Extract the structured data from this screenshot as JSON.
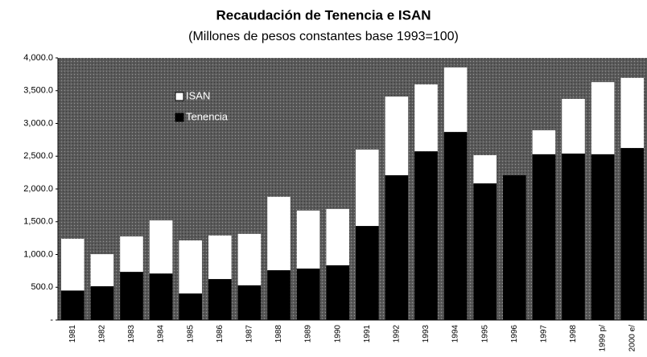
{
  "chart_data": {
    "type": "stacked_bar",
    "title": "Recaudación de Tenencia e ISAN",
    "subtitle": "(Millones de pesos constantes base 1993=100)",
    "categories": [
      "1981",
      "1982",
      "1983",
      "1984",
      "1985",
      "1986",
      "1987",
      "1988",
      "1989",
      "1990",
      "1991",
      "1992",
      "1993",
      "1994",
      "1995",
      "1996",
      "1997",
      "1998",
      "1999 p/",
      "2000 e/"
    ],
    "series": [
      {
        "name": "Tenencia",
        "color": "#000000",
        "values": [
          450,
          515,
          735,
          710,
          405,
          625,
          530,
          760,
          785,
          835,
          1435,
          2210,
          2575,
          2870,
          2085,
          2210,
          2530,
          2540,
          2530,
          2625
        ]
      },
      {
        "name": "ISAN",
        "color": "#ffffff",
        "values": [
          790,
          490,
          540,
          810,
          810,
          665,
          785,
          1120,
          885,
          860,
          1165,
          1200,
          1020,
          985,
          430,
          0,
          365,
          835,
          1100,
          1070
        ]
      }
    ],
    "ylim": [
      0,
      4000
    ],
    "yticks": [
      {
        "value": 0,
        "label": "-"
      },
      {
        "value": 500,
        "label": "500.0"
      },
      {
        "value": 1000,
        "label": "1,000.0"
      },
      {
        "value": 1500,
        "label": "1,500.0"
      },
      {
        "value": 2000,
        "label": "2,000.0"
      },
      {
        "value": 2500,
        "label": "2,500.0"
      },
      {
        "value": 3000,
        "label": "3,000.0"
      },
      {
        "value": 3500,
        "label": "3,500.0"
      },
      {
        "value": 4000,
        "label": "4,000.0"
      }
    ]
  }
}
